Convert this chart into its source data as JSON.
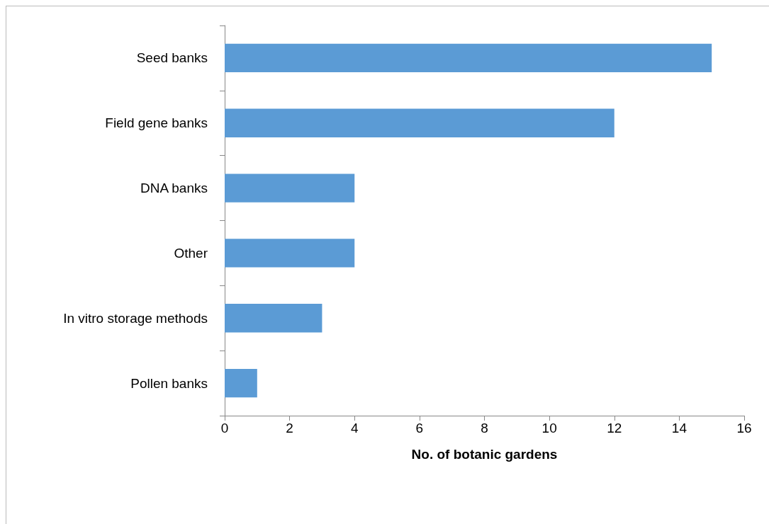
{
  "chart_data": {
    "type": "bar",
    "orientation": "horizontal",
    "xlabel": "No. of botanic gardens",
    "categories": [
      "Seed banks",
      "Field gene banks",
      "DNA banks",
      "Other",
      "In vitro storage methods",
      "Pollen banks"
    ],
    "values": [
      15,
      12,
      4,
      4,
      3,
      1
    ],
    "color": "#5b9bd5",
    "xlim": [
      0,
      16
    ],
    "xticks": [
      0,
      2,
      4,
      6,
      8,
      10,
      12,
      14,
      16
    ]
  }
}
